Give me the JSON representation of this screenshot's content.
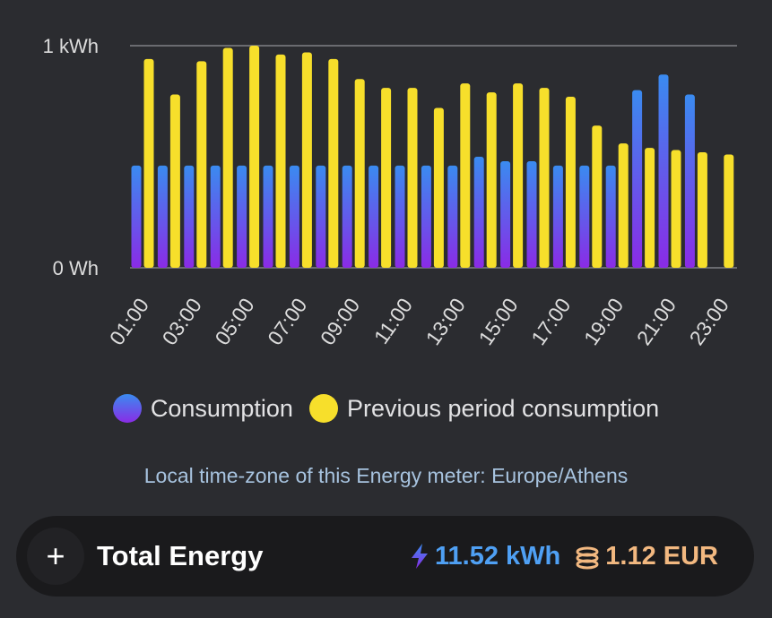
{
  "chart_data": {
    "type": "bar",
    "y_ticks": [
      "1 kWh",
      "0 Wh"
    ],
    "ylim": [
      0,
      1.0
    ],
    "y_unit": "kWh",
    "grid": true,
    "categories": [
      "01:00",
      "02:00",
      "03:00",
      "04:00",
      "05:00",
      "06:00",
      "07:00",
      "08:00",
      "09:00",
      "10:00",
      "11:00",
      "12:00",
      "13:00",
      "14:00",
      "15:00",
      "16:00",
      "17:00",
      "18:00",
      "19:00",
      "20:00",
      "21:00",
      "22:00",
      "23:00"
    ],
    "x_tick_labels": [
      "01:00",
      "03:00",
      "05:00",
      "07:00",
      "09:00",
      "11:00",
      "13:00",
      "15:00",
      "17:00",
      "19:00",
      "21:00",
      "23:00"
    ],
    "series": [
      {
        "name": "Consumption",
        "color_top": "#3a8bf0",
        "color_bottom": "#8a2be6",
        "values": [
          0.46,
          0.46,
          0.46,
          0.46,
          0.46,
          0.46,
          0.46,
          0.46,
          0.46,
          0.46,
          0.46,
          0.46,
          0.46,
          0.5,
          0.48,
          0.48,
          0.46,
          0.46,
          0.46,
          0.8,
          0.87,
          0.78,
          0
        ]
      },
      {
        "name": "Previous period consumption",
        "color": "#f7df2b",
        "values": [
          0.94,
          0.78,
          0.93,
          0.99,
          1.0,
          0.96,
          0.97,
          0.94,
          0.85,
          0.81,
          0.81,
          0.72,
          0.83,
          0.79,
          0.83,
          0.81,
          0.77,
          0.64,
          0.56,
          0.54,
          0.53,
          0.52,
          0.51
        ]
      }
    ],
    "legend_position": "bottom"
  },
  "timezone_note": "Local time-zone of this Energy meter: Europe/Athens",
  "total": {
    "plus_glyph": "+",
    "title": "Total Energy",
    "energy": "11.52 kWh",
    "cost": "1.12 EUR",
    "energy_icon": "lightning-bolt-icon",
    "cost_icon": "coins-icon"
  },
  "colors": {
    "background": "#2b2c30",
    "energy": "#4fa0f4",
    "cost": "#f2b880"
  }
}
